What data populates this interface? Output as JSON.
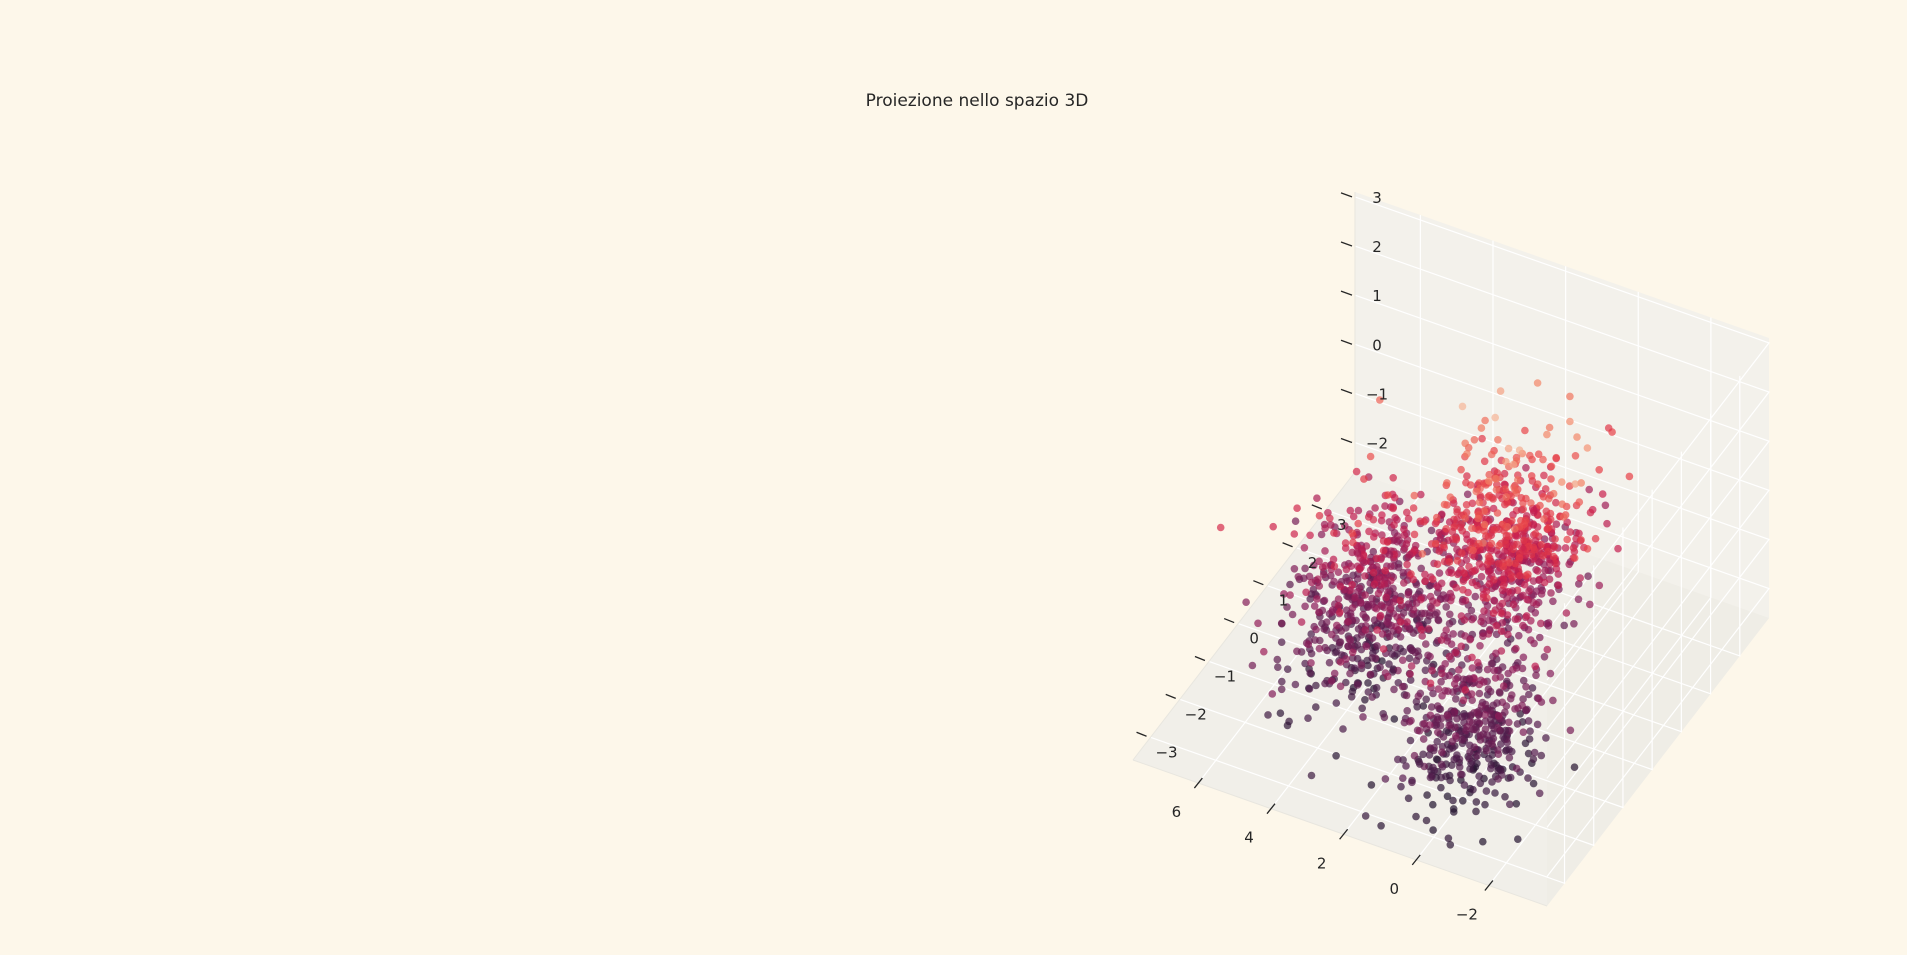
{
  "page": {
    "background": "#fdf7ea"
  },
  "chart_data": {
    "type": "scatter",
    "projection": "3d",
    "title": "Proiezione nello spazio 3D",
    "xlabel": "",
    "ylabel": "",
    "zlabel": "",
    "xlim": [
      -3.6,
      7.8
    ],
    "ylim": [
      -3.6,
      4.0
    ],
    "zlim": [
      -2.6,
      3.1
    ],
    "x_ticks": [
      -2,
      0,
      2,
      4,
      6
    ],
    "x_tick_labels": [
      "−2",
      "0",
      "2",
      "4",
      "6"
    ],
    "y_ticks": [
      -3,
      -2,
      -1,
      0,
      1,
      2,
      3
    ],
    "y_tick_labels": [
      "−3",
      "−2",
      "−1",
      "0",
      "1",
      "2",
      "3"
    ],
    "z_ticks": [
      -2,
      -1,
      0,
      1,
      2,
      3
    ],
    "z_tick_labels": [
      "−2",
      "−1",
      "0",
      "1",
      "2",
      "3"
    ],
    "grid": true,
    "legend": "none",
    "pane_color": "#f1efe9",
    "grid_color": "#ffffff",
    "colormap": "rocket",
    "color_encodes": "z",
    "marker_alpha": 0.7,
    "series": [
      {
        "name": "",
        "distribution": "three overlapping gaussian clusters, approx. 1900 points",
        "points": [
          [
            0.5,
            0.4,
            0.2
          ],
          [
            1.0,
            0.2,
            0.5
          ],
          [
            0.8,
            0.1,
            -0.1
          ],
          [
            1.3,
            0.5,
            0.8
          ],
          [
            0.2,
            0.7,
            0.4
          ],
          [
            0.6,
            0.3,
            1.1
          ],
          [
            1.5,
            0.9,
            0.3
          ],
          [
            0.9,
            -0.3,
            1.0
          ],
          [
            1.8,
            0.5,
            1.4
          ],
          [
            0.0,
            0.1,
            0.9
          ],
          [
            1.1,
            1.2,
            1.6
          ],
          [
            0.4,
            -0.6,
            0.6
          ],
          [
            3.4,
            -0.6,
            -0.3
          ],
          [
            3.9,
            -1.0,
            -0.6
          ],
          [
            3.0,
            -0.3,
            -0.9
          ],
          [
            4.2,
            -0.4,
            0.1
          ],
          [
            3.6,
            -1.3,
            -1.2
          ],
          [
            2.8,
            -0.9,
            -0.4
          ],
          [
            4.5,
            -0.2,
            -1.1
          ],
          [
            3.3,
            0.1,
            0.3
          ],
          [
            4.0,
            -1.5,
            -1.6
          ],
          [
            2.6,
            -0.5,
            -1.4
          ],
          [
            4.8,
            -0.8,
            -0.2
          ],
          [
            3.7,
            0.4,
            -0.7
          ],
          [
            -0.3,
            -1.6,
            -0.9
          ],
          [
            0.1,
            -2.0,
            -1.3
          ],
          [
            -0.6,
            -1.2,
            -0.5
          ],
          [
            0.4,
            -1.9,
            -1.7
          ],
          [
            -0.1,
            -2.4,
            -0.8
          ],
          [
            -0.8,
            -1.7,
            -1.5
          ],
          [
            0.3,
            -1.1,
            -2.1
          ],
          [
            -0.4,
            -2.2,
            -0.2
          ],
          [
            0.6,
            -1.5,
            -1.1
          ],
          [
            -0.9,
            -2.0,
            -1.9
          ],
          [
            0.0,
            -2.7,
            -1.4
          ],
          [
            -0.5,
            -1.4,
            -2.3
          ]
        ]
      }
    ]
  }
}
